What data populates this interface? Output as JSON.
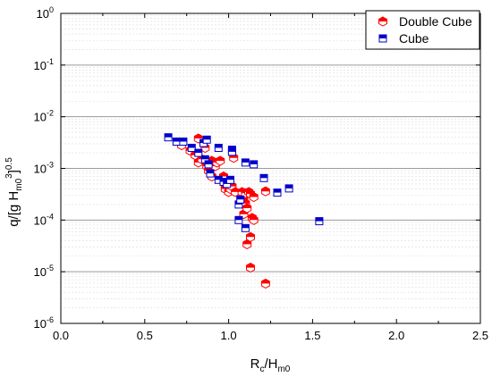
{
  "chart_data": {
    "type": "scatter",
    "title": "",
    "xlabel": {
      "main": "R",
      "sub1": "c",
      "mid": "/H",
      "sub2": "m0"
    },
    "ylabel": {
      "prefix": "q/[g H",
      "sub": "m0",
      "sup": "3",
      "suffix": "]",
      "sup2": "0.5"
    },
    "xlim": [
      0.0,
      2.5
    ],
    "ylim": [
      1e-06,
      1
    ],
    "yscale": "log",
    "xticks": [
      0.0,
      0.5,
      1.0,
      1.5,
      2.0,
      2.5
    ],
    "xtick_labels": [
      "0.0",
      "0.5",
      "1.0",
      "1.5",
      "2.0",
      "2.5"
    ],
    "yticks": [
      {
        "value": 1e-06,
        "base": "10",
        "exp": "-6"
      },
      {
        "value": 1e-05,
        "base": "10",
        "exp": "-5"
      },
      {
        "value": 0.0001,
        "base": "10",
        "exp": "-4"
      },
      {
        "value": 0.001,
        "base": "10",
        "exp": "-3"
      },
      {
        "value": 0.01,
        "base": "10",
        "exp": "-2"
      },
      {
        "value": 0.1,
        "base": "10",
        "exp": "-1"
      },
      {
        "value": 1,
        "base": "10",
        "exp": "0"
      }
    ],
    "grid": true,
    "legend_position": "top-right",
    "series": [
      {
        "name": "Double Cube",
        "marker": "hexagon-half-filled",
        "color": "#ff0000",
        "points": [
          [
            0.72,
            0.0028
          ],
          [
            0.77,
            0.0022
          ],
          [
            0.8,
            0.0018
          ],
          [
            0.82,
            0.0038
          ],
          [
            0.82,
            0.0013
          ],
          [
            0.84,
            0.0015
          ],
          [
            0.86,
            0.0025
          ],
          [
            0.87,
            0.0011
          ],
          [
            0.88,
            0.0009
          ],
          [
            0.9,
            0.0014
          ],
          [
            0.9,
            0.0007
          ],
          [
            0.92,
            0.0011
          ],
          [
            0.93,
            0.0013
          ],
          [
            0.95,
            0.0014
          ],
          [
            0.97,
            0.0007
          ],
          [
            0.98,
            0.0005
          ],
          [
            0.98,
            0.0004
          ],
          [
            1.0,
            0.0005
          ],
          [
            1.0,
            0.00035
          ],
          [
            1.01,
            0.0004
          ],
          [
            1.02,
            0.00045
          ],
          [
            1.03,
            0.0016
          ],
          [
            1.04,
            0.00035
          ],
          [
            1.08,
            0.00035
          ],
          [
            1.09,
            0.00025
          ],
          [
            1.09,
            0.00013
          ],
          [
            1.1,
            0.00033
          ],
          [
            1.1,
            0.00021
          ],
          [
            1.11,
            0.00017
          ],
          [
            1.11,
            3.4e-05
          ],
          [
            1.12,
            0.00035
          ],
          [
            1.13,
            0.00032
          ],
          [
            1.13,
            4.7e-05
          ],
          [
            1.13,
            1.2e-05
          ],
          [
            1.14,
            0.00011
          ],
          [
            1.15,
            0.0001
          ],
          [
            1.15,
            0.00028
          ],
          [
            1.22,
            0.00036
          ],
          [
            1.22,
            5.9e-06
          ]
        ]
      },
      {
        "name": "Cube",
        "marker": "square-half-filled",
        "color": "#0000cc",
        "points": [
          [
            0.64,
            0.004
          ],
          [
            0.69,
            0.0033
          ],
          [
            0.73,
            0.0033
          ],
          [
            0.78,
            0.0025
          ],
          [
            0.82,
            0.002
          ],
          [
            0.85,
            0.0031
          ],
          [
            0.86,
            0.0015
          ],
          [
            0.87,
            0.0036
          ],
          [
            0.88,
            0.0012
          ],
          [
            0.89,
            0.0008
          ],
          [
            0.94,
            0.0025
          ],
          [
            0.94,
            0.0006
          ],
          [
            0.97,
            0.00055
          ],
          [
            0.99,
            0.0005
          ],
          [
            1.01,
            0.0006
          ],
          [
            1.02,
            0.0023
          ],
          [
            1.02,
            0.0021
          ],
          [
            1.06,
            0.0002
          ],
          [
            1.06,
            0.0001
          ],
          [
            1.07,
            0.00025
          ],
          [
            1.1,
            0.0013
          ],
          [
            1.1,
            7e-05
          ],
          [
            1.15,
            0.0012
          ],
          [
            1.21,
            0.00065
          ],
          [
            1.29,
            0.00034
          ],
          [
            1.36,
            0.00041
          ],
          [
            1.54,
            9.5e-05
          ]
        ]
      }
    ]
  }
}
